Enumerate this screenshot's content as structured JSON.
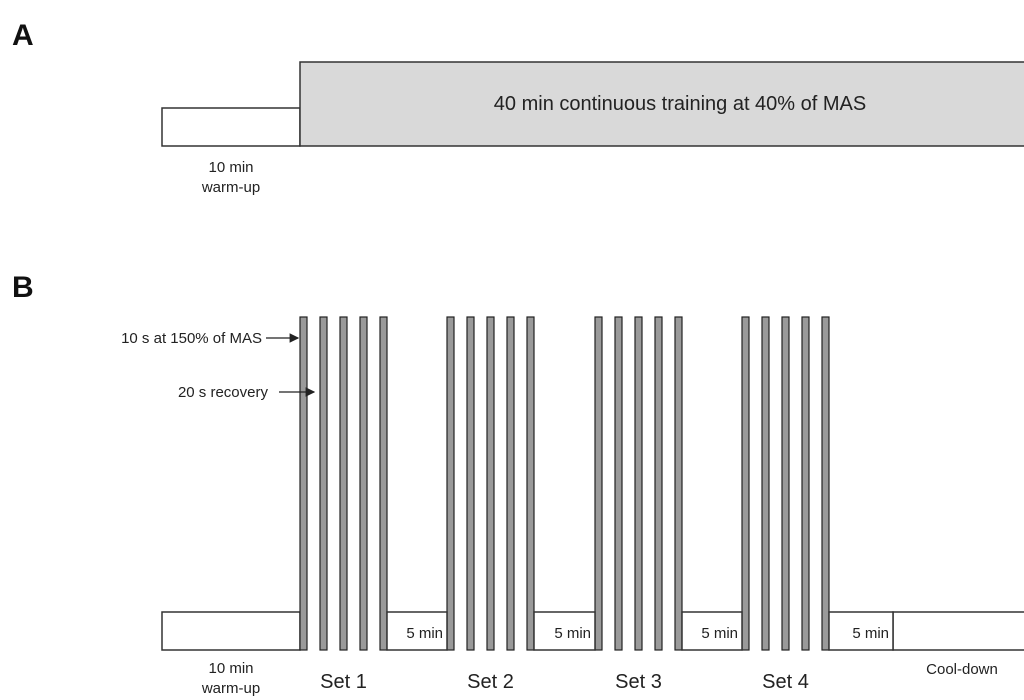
{
  "panel_a": {
    "letter": "A",
    "warmup_label_line1": "10 min",
    "warmup_label_line2": "warm-up",
    "main_label": "40 min continuous training at 40% of MAS"
  },
  "panel_b": {
    "letter": "B",
    "warmup_label_line1": "10 min",
    "warmup_label_line2": "warm-up",
    "interval_annotation": "10 s at 150% of MAS",
    "recovery_annotation": "20 s recovery",
    "rest_label": "5 min",
    "cooldown_label": "Cool-down",
    "sets": [
      {
        "label": "Set 1",
        "bars": 5
      },
      {
        "label": "Set 2",
        "bars": 5
      },
      {
        "label": "Set 3",
        "bars": 5
      },
      {
        "label": "Set 4",
        "bars": 5
      }
    ]
  }
}
